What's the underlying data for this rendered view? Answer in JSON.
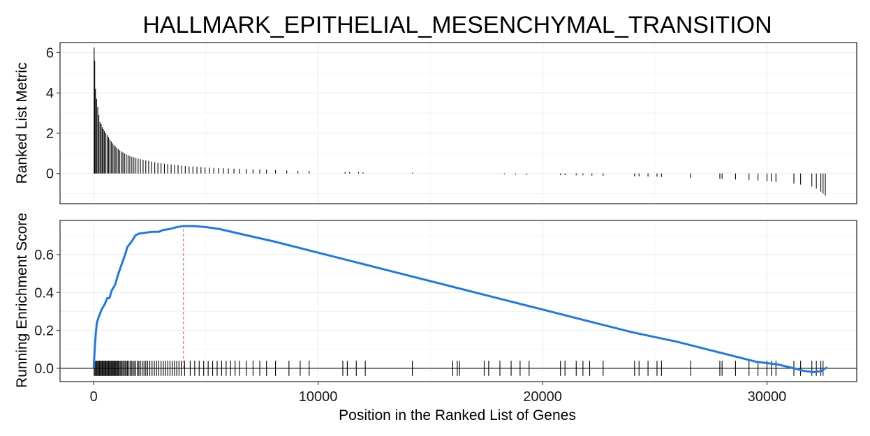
{
  "chart_data": {
    "type": "line",
    "title": "HALLMARK_EPITHELIAL_MESENCHYMAL_TRANSITION",
    "xlabel": "Position in the Ranked List of Genes",
    "x_ticks": [
      0,
      10000,
      20000,
      30000
    ],
    "x_tick_labels": [
      "0",
      "10000",
      "20000",
      "30000"
    ],
    "xlim": [
      -1500,
      34000
    ],
    "total_genes": 32700,
    "colors": {
      "curve": "#1f78e8",
      "peak_marker": "#e05050",
      "bars": "#000000",
      "gene_ticks": "#000000"
    },
    "top_panel": {
      "ylabel": "Ranked List Metric",
      "ylim": [
        -1.5,
        6.5
      ],
      "y_ticks": [
        0,
        2,
        4,
        6
      ],
      "y_tick_labels": [
        "0",
        "2",
        "4",
        "6"
      ],
      "metric_bars": [
        {
          "x": 20,
          "y": 6.25
        },
        {
          "x": 45,
          "y": 5.6
        },
        {
          "x": 80,
          "y": 4.2
        },
        {
          "x": 130,
          "y": 3.7
        },
        {
          "x": 180,
          "y": 3.3
        },
        {
          "x": 230,
          "y": 2.9
        },
        {
          "x": 280,
          "y": 2.55
        },
        {
          "x": 330,
          "y": 2.45
        },
        {
          "x": 380,
          "y": 2.3
        },
        {
          "x": 430,
          "y": 2.2
        },
        {
          "x": 480,
          "y": 2.1
        },
        {
          "x": 540,
          "y": 2.0
        },
        {
          "x": 600,
          "y": 1.9
        },
        {
          "x": 660,
          "y": 1.8
        },
        {
          "x": 720,
          "y": 1.7
        },
        {
          "x": 780,
          "y": 1.6
        },
        {
          "x": 840,
          "y": 1.5
        },
        {
          "x": 900,
          "y": 1.42
        },
        {
          "x": 960,
          "y": 1.35
        },
        {
          "x": 1020,
          "y": 1.28
        },
        {
          "x": 1090,
          "y": 1.22
        },
        {
          "x": 1160,
          "y": 1.15
        },
        {
          "x": 1230,
          "y": 1.1
        },
        {
          "x": 1300,
          "y": 1.05
        },
        {
          "x": 1370,
          "y": 1.0
        },
        {
          "x": 1450,
          "y": 0.95
        },
        {
          "x": 1530,
          "y": 0.91
        },
        {
          "x": 1610,
          "y": 0.87
        },
        {
          "x": 1700,
          "y": 0.83
        },
        {
          "x": 1790,
          "y": 0.8
        },
        {
          "x": 1880,
          "y": 0.77
        },
        {
          "x": 1980,
          "y": 0.74
        },
        {
          "x": 2080,
          "y": 0.71
        },
        {
          "x": 2200,
          "y": 0.68
        },
        {
          "x": 2320,
          "y": 0.65
        },
        {
          "x": 2450,
          "y": 0.62
        },
        {
          "x": 2580,
          "y": 0.59
        },
        {
          "x": 2720,
          "y": 0.56
        },
        {
          "x": 2860,
          "y": 0.53
        },
        {
          "x": 3000,
          "y": 0.51
        },
        {
          "x": 3150,
          "y": 0.49
        },
        {
          "x": 3300,
          "y": 0.47
        },
        {
          "x": 3450,
          "y": 0.45
        },
        {
          "x": 3600,
          "y": 0.43
        },
        {
          "x": 3760,
          "y": 0.41
        },
        {
          "x": 3920,
          "y": 0.39
        },
        {
          "x": 4080,
          "y": 0.37
        },
        {
          "x": 4250,
          "y": 0.35
        },
        {
          "x": 4420,
          "y": 0.34
        },
        {
          "x": 4600,
          "y": 0.33
        },
        {
          "x": 4780,
          "y": 0.32
        },
        {
          "x": 4960,
          "y": 0.3
        },
        {
          "x": 5150,
          "y": 0.29
        },
        {
          "x": 5350,
          "y": 0.28
        },
        {
          "x": 5560,
          "y": 0.27
        },
        {
          "x": 5780,
          "y": 0.26
        },
        {
          "x": 6000,
          "y": 0.25
        },
        {
          "x": 6250,
          "y": 0.24
        },
        {
          "x": 6500,
          "y": 0.23
        },
        {
          "x": 6800,
          "y": 0.22
        },
        {
          "x": 7100,
          "y": 0.21
        },
        {
          "x": 7400,
          "y": 0.2
        },
        {
          "x": 7700,
          "y": 0.19
        },
        {
          "x": 8100,
          "y": 0.17
        },
        {
          "x": 8600,
          "y": 0.15
        },
        {
          "x": 9100,
          "y": 0.13
        },
        {
          "x": 9600,
          "y": 0.12
        },
        {
          "x": 11200,
          "y": 0.08
        },
        {
          "x": 11400,
          "y": 0.07
        },
        {
          "x": 11800,
          "y": 0.07
        },
        {
          "x": 12000,
          "y": 0.06
        },
        {
          "x": 14200,
          "y": 0.04
        },
        {
          "x": 18300,
          "y": -0.04
        },
        {
          "x": 18800,
          "y": -0.05
        },
        {
          "x": 19300,
          "y": -0.06
        },
        {
          "x": 20800,
          "y": -0.08
        },
        {
          "x": 21000,
          "y": -0.08
        },
        {
          "x": 21500,
          "y": -0.09
        },
        {
          "x": 21800,
          "y": -0.09
        },
        {
          "x": 22200,
          "y": -0.1
        },
        {
          "x": 22700,
          "y": -0.11
        },
        {
          "x": 24100,
          "y": -0.14
        },
        {
          "x": 24300,
          "y": -0.14
        },
        {
          "x": 24700,
          "y": -0.15
        },
        {
          "x": 25100,
          "y": -0.16
        },
        {
          "x": 25300,
          "y": -0.17
        },
        {
          "x": 26600,
          "y": -0.22
        },
        {
          "x": 27900,
          "y": -0.26
        },
        {
          "x": 28000,
          "y": -0.27
        },
        {
          "x": 28600,
          "y": -0.3
        },
        {
          "x": 29200,
          "y": -0.33
        },
        {
          "x": 29600,
          "y": -0.35
        },
        {
          "x": 30000,
          "y": -0.38
        },
        {
          "x": 30200,
          "y": -0.4
        },
        {
          "x": 30400,
          "y": -0.42
        },
        {
          "x": 31200,
          "y": -0.5
        },
        {
          "x": 31500,
          "y": -0.55
        },
        {
          "x": 32000,
          "y": -0.65
        },
        {
          "x": 32200,
          "y": -0.75
        },
        {
          "x": 32400,
          "y": -0.9
        },
        {
          "x": 32500,
          "y": -1.0
        },
        {
          "x": 32600,
          "y": -1.1
        }
      ]
    },
    "bottom_panel": {
      "ylabel": "Running Enrichment Score",
      "ylim": [
        -0.07,
        0.78
      ],
      "y_ticks": [
        0.0,
        0.2,
        0.4,
        0.6
      ],
      "y_tick_labels": [
        "0.0",
        "0.2",
        "0.4",
        "0.6"
      ],
      "peak_x": 4000,
      "running_es": [
        {
          "x": 0,
          "y": 0.0
        },
        {
          "x": 40,
          "y": 0.09
        },
        {
          "x": 90,
          "y": 0.18
        },
        {
          "x": 140,
          "y": 0.24
        },
        {
          "x": 220,
          "y": 0.27
        },
        {
          "x": 350,
          "y": 0.31
        },
        {
          "x": 500,
          "y": 0.34
        },
        {
          "x": 600,
          "y": 0.37
        },
        {
          "x": 700,
          "y": 0.37
        },
        {
          "x": 800,
          "y": 0.41
        },
        {
          "x": 950,
          "y": 0.44
        },
        {
          "x": 1100,
          "y": 0.5
        },
        {
          "x": 1250,
          "y": 0.55
        },
        {
          "x": 1400,
          "y": 0.6
        },
        {
          "x": 1500,
          "y": 0.64
        },
        {
          "x": 1700,
          "y": 0.67
        },
        {
          "x": 1850,
          "y": 0.7
        },
        {
          "x": 2000,
          "y": 0.71
        },
        {
          "x": 2300,
          "y": 0.715
        },
        {
          "x": 2600,
          "y": 0.72
        },
        {
          "x": 2900,
          "y": 0.72
        },
        {
          "x": 3100,
          "y": 0.73
        },
        {
          "x": 3400,
          "y": 0.735
        },
        {
          "x": 3700,
          "y": 0.745
        },
        {
          "x": 4000,
          "y": 0.75
        },
        {
          "x": 4500,
          "y": 0.75
        },
        {
          "x": 5000,
          "y": 0.745
        },
        {
          "x": 5600,
          "y": 0.735
        },
        {
          "x": 6500,
          "y": 0.71
        },
        {
          "x": 8000,
          "y": 0.67
        },
        {
          "x": 10000,
          "y": 0.61
        },
        {
          "x": 12000,
          "y": 0.55
        },
        {
          "x": 14000,
          "y": 0.49
        },
        {
          "x": 16000,
          "y": 0.43
        },
        {
          "x": 18000,
          "y": 0.37
        },
        {
          "x": 20000,
          "y": 0.31
        },
        {
          "x": 22000,
          "y": 0.25
        },
        {
          "x": 24000,
          "y": 0.19
        },
        {
          "x": 26000,
          "y": 0.14
        },
        {
          "x": 28000,
          "y": 0.08
        },
        {
          "x": 29500,
          "y": 0.035
        },
        {
          "x": 30500,
          "y": 0.02
        },
        {
          "x": 31200,
          "y": 0.0
        },
        {
          "x": 31700,
          "y": -0.015
        },
        {
          "x": 32100,
          "y": -0.02
        },
        {
          "x": 32400,
          "y": -0.015
        },
        {
          "x": 32600,
          "y": 0.0
        },
        {
          "x": 32700,
          "y": 0.005
        }
      ],
      "gene_hits": [
        20,
        60,
        100,
        140,
        180,
        220,
        260,
        300,
        340,
        380,
        420,
        460,
        500,
        540,
        580,
        620,
        660,
        700,
        740,
        780,
        820,
        860,
        900,
        940,
        980,
        1020,
        1060,
        1100,
        1150,
        1200,
        1250,
        1300,
        1350,
        1400,
        1450,
        1500,
        1560,
        1620,
        1680,
        1740,
        1800,
        1870,
        1940,
        2010,
        2080,
        2160,
        2240,
        2320,
        2400,
        2500,
        2600,
        2700,
        2800,
        2900,
        3000,
        3100,
        3200,
        3300,
        3400,
        3500,
        3600,
        3700,
        3800,
        3900,
        4050,
        4300,
        4500,
        4700,
        4900,
        5100,
        5300,
        5500,
        5700,
        5900,
        6100,
        6300,
        6500,
        6800,
        7100,
        7400,
        7700,
        8100,
        8700,
        9200,
        9600,
        11100,
        11300,
        11700,
        12100,
        14200,
        16000,
        16200,
        16300,
        17400,
        17600,
        18100,
        18600,
        19000,
        19400,
        20800,
        21000,
        21500,
        21800,
        22100,
        22700,
        24100,
        24300,
        24700,
        25100,
        25300,
        26600,
        27900,
        28000,
        28600,
        29200,
        29600,
        30000,
        30200,
        30400,
        31200,
        31500,
        32000,
        32200,
        32400,
        32500
      ]
    }
  }
}
